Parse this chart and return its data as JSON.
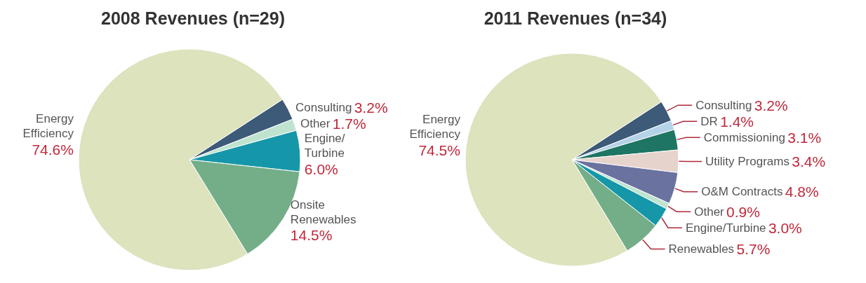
{
  "chart_data": [
    {
      "type": "pie",
      "title": "2008 Revenues (n=29)",
      "categories": [
        "Consulting",
        "Other",
        "Engine/Turbine",
        "Onsite Renewables",
        "Energy Efficiency"
      ],
      "values": [
        3.2,
        1.7,
        6.0,
        14.5,
        74.6
      ],
      "value_labels": [
        "3.2%",
        "1.7%",
        "6.0%",
        "14.5%",
        "74.6%"
      ],
      "colors": [
        "#3d5a78",
        "#bfe3cf",
        "#1597a9",
        "#74ae88",
        "#dce3bd"
      ],
      "legend": false
    },
    {
      "type": "pie",
      "title": "2011 Revenues (n=34)",
      "categories": [
        "Consulting",
        "DR",
        "Commissioning",
        "Utility Programs",
        "O&M Contracts",
        "Other",
        "Engine/Turbine",
        "Renewables",
        "Energy Efficiency"
      ],
      "values": [
        3.2,
        1.4,
        3.1,
        3.4,
        4.8,
        0.9,
        3.0,
        5.7,
        74.5
      ],
      "value_labels": [
        "3.2%",
        "1.4%",
        "3.1%",
        "3.4%",
        "4.8%",
        "0.9%",
        "3.0%",
        "5.7%",
        "74.5%"
      ],
      "colors": [
        "#3d5a78",
        "#b5d3e8",
        "#1e7563",
        "#e6d3cc",
        "#6a72a0",
        "#bfe3cf",
        "#1597a9",
        "#74ae88",
        "#dce3bd"
      ],
      "legend": false
    }
  ]
}
